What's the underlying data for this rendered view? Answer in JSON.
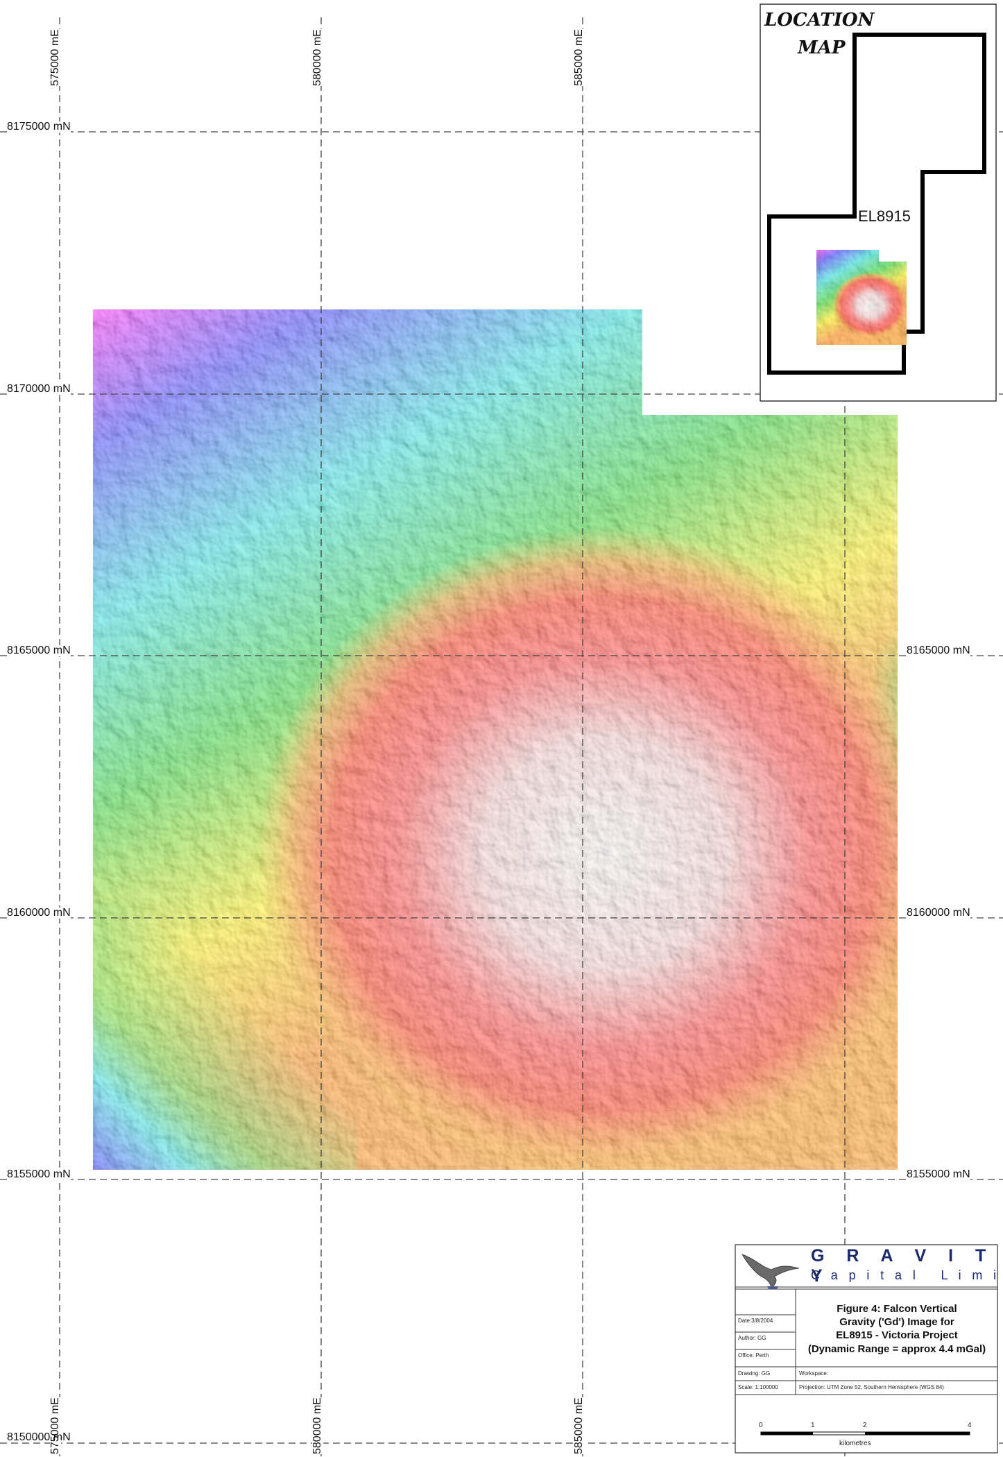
{
  "map": {
    "easting_labels": [
      "575000 mE",
      "580000 mE",
      "585000 mE"
    ],
    "northing_labels": [
      "8175000 mN",
      "8170000 mN",
      "8165000 mN",
      "8160000 mN",
      "8155000 mN",
      "8150000 mN"
    ],
    "right_northing_labels": [
      "8165000 mN",
      "8160000 mN",
      "8155000 mN"
    ],
    "image_description_colors": {
      "low": "#ff00ff",
      "mid_low": "#1f3fff",
      "mid": "#1fe0e0",
      "mid_high": "#20d020",
      "high": "#ffe600",
      "higher": "#ff7a00",
      "peak": "#ff1010",
      "max": "#f4f0f0"
    }
  },
  "location_map": {
    "title_line1": "LOCATION",
    "title_line2": "MAP",
    "tenement_label": "EL8915"
  },
  "title_block": {
    "company_line1": "G R A V I T Y",
    "company_line2": "C a p i t a l   L i m i t e d",
    "figure_title_lines": [
      "Figure 4: Falcon Vertical",
      "Gravity ('Gd') Image for",
      "EL8915 - Victoria Project",
      "(Dynamic Range = approx 4.4 mGal)"
    ],
    "date": "Date:3/8/2004",
    "author": "Author: GG",
    "office": "Office: Perth",
    "drawing": "Drawing: GG",
    "workspace": "Workspace:",
    "scale": "Scale: 1:100000",
    "projection": "Projection: UTM Zone 52, Southern Hemisphere (WGS 84)",
    "scalebar_ticks": [
      "0",
      "1",
      "2",
      "4"
    ],
    "scalebar_unit": "kilometres"
  },
  "colors": {
    "grid_line": "#444444",
    "logo_blue": "#1a2a6c"
  }
}
